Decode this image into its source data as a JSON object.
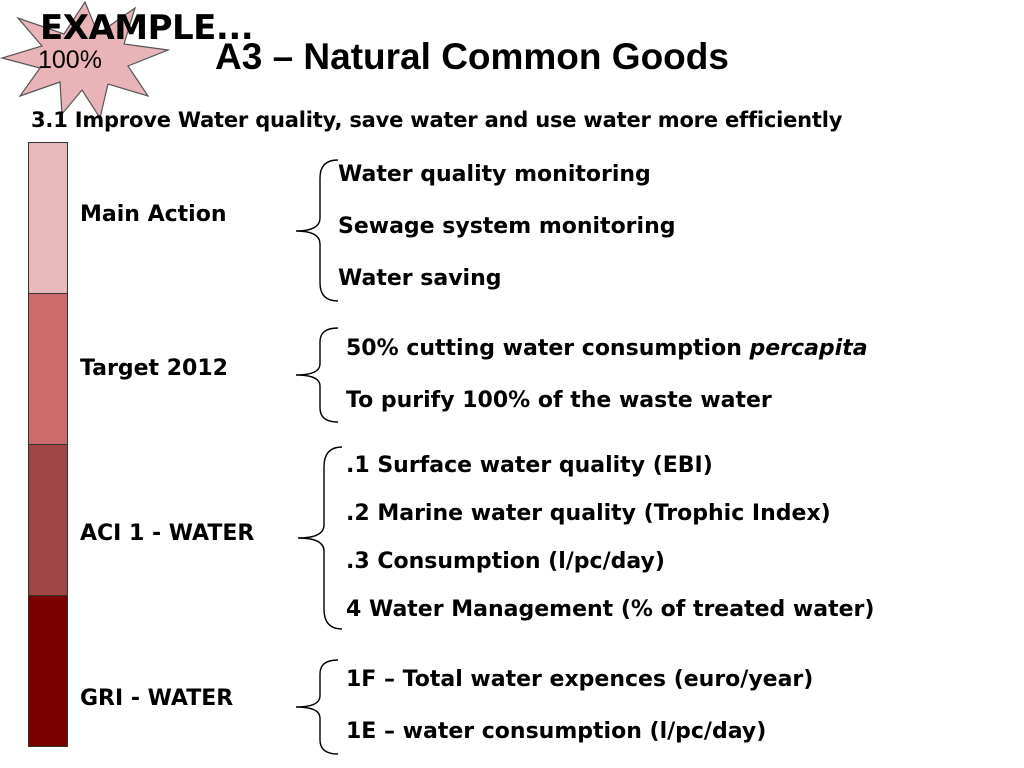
{
  "badge": {
    "example": "EXAMPLE...",
    "percent": "100%",
    "fill_color": "#e8b4b8"
  },
  "title": "A3 – Natural Common Goods",
  "subtitle": "3.1 Improve Water quality, save water and use water more efficiently",
  "bar_colors": [
    "#e8b9bb",
    "#cc6b6b",
    "#a04646",
    "#7a0000"
  ],
  "sections": [
    {
      "label": "Main Action",
      "items": [
        "Water quality monitoring",
        "Sewage system monitoring",
        "Water saving"
      ]
    },
    {
      "label": "Target 2012",
      "items": [
        {
          "text": "50% cutting water consumption ",
          "em": "percapita"
        },
        "To purify 100% of the waste water"
      ]
    },
    {
      "label": "ACI 1 - WATER",
      "items": [
        ".1  Surface water quality (EBI)",
        ".2  Marine water quality  (Trophic Index)",
        ".3  Consumption  (l/pc/day)",
        "4   Water Management (% of treated water)"
      ]
    },
    {
      "label": "GRI - WATER",
      "items": [
        "1F – Total water expences (euro/year)",
        "1E – water consumption (l/pc/day)"
      ]
    }
  ]
}
